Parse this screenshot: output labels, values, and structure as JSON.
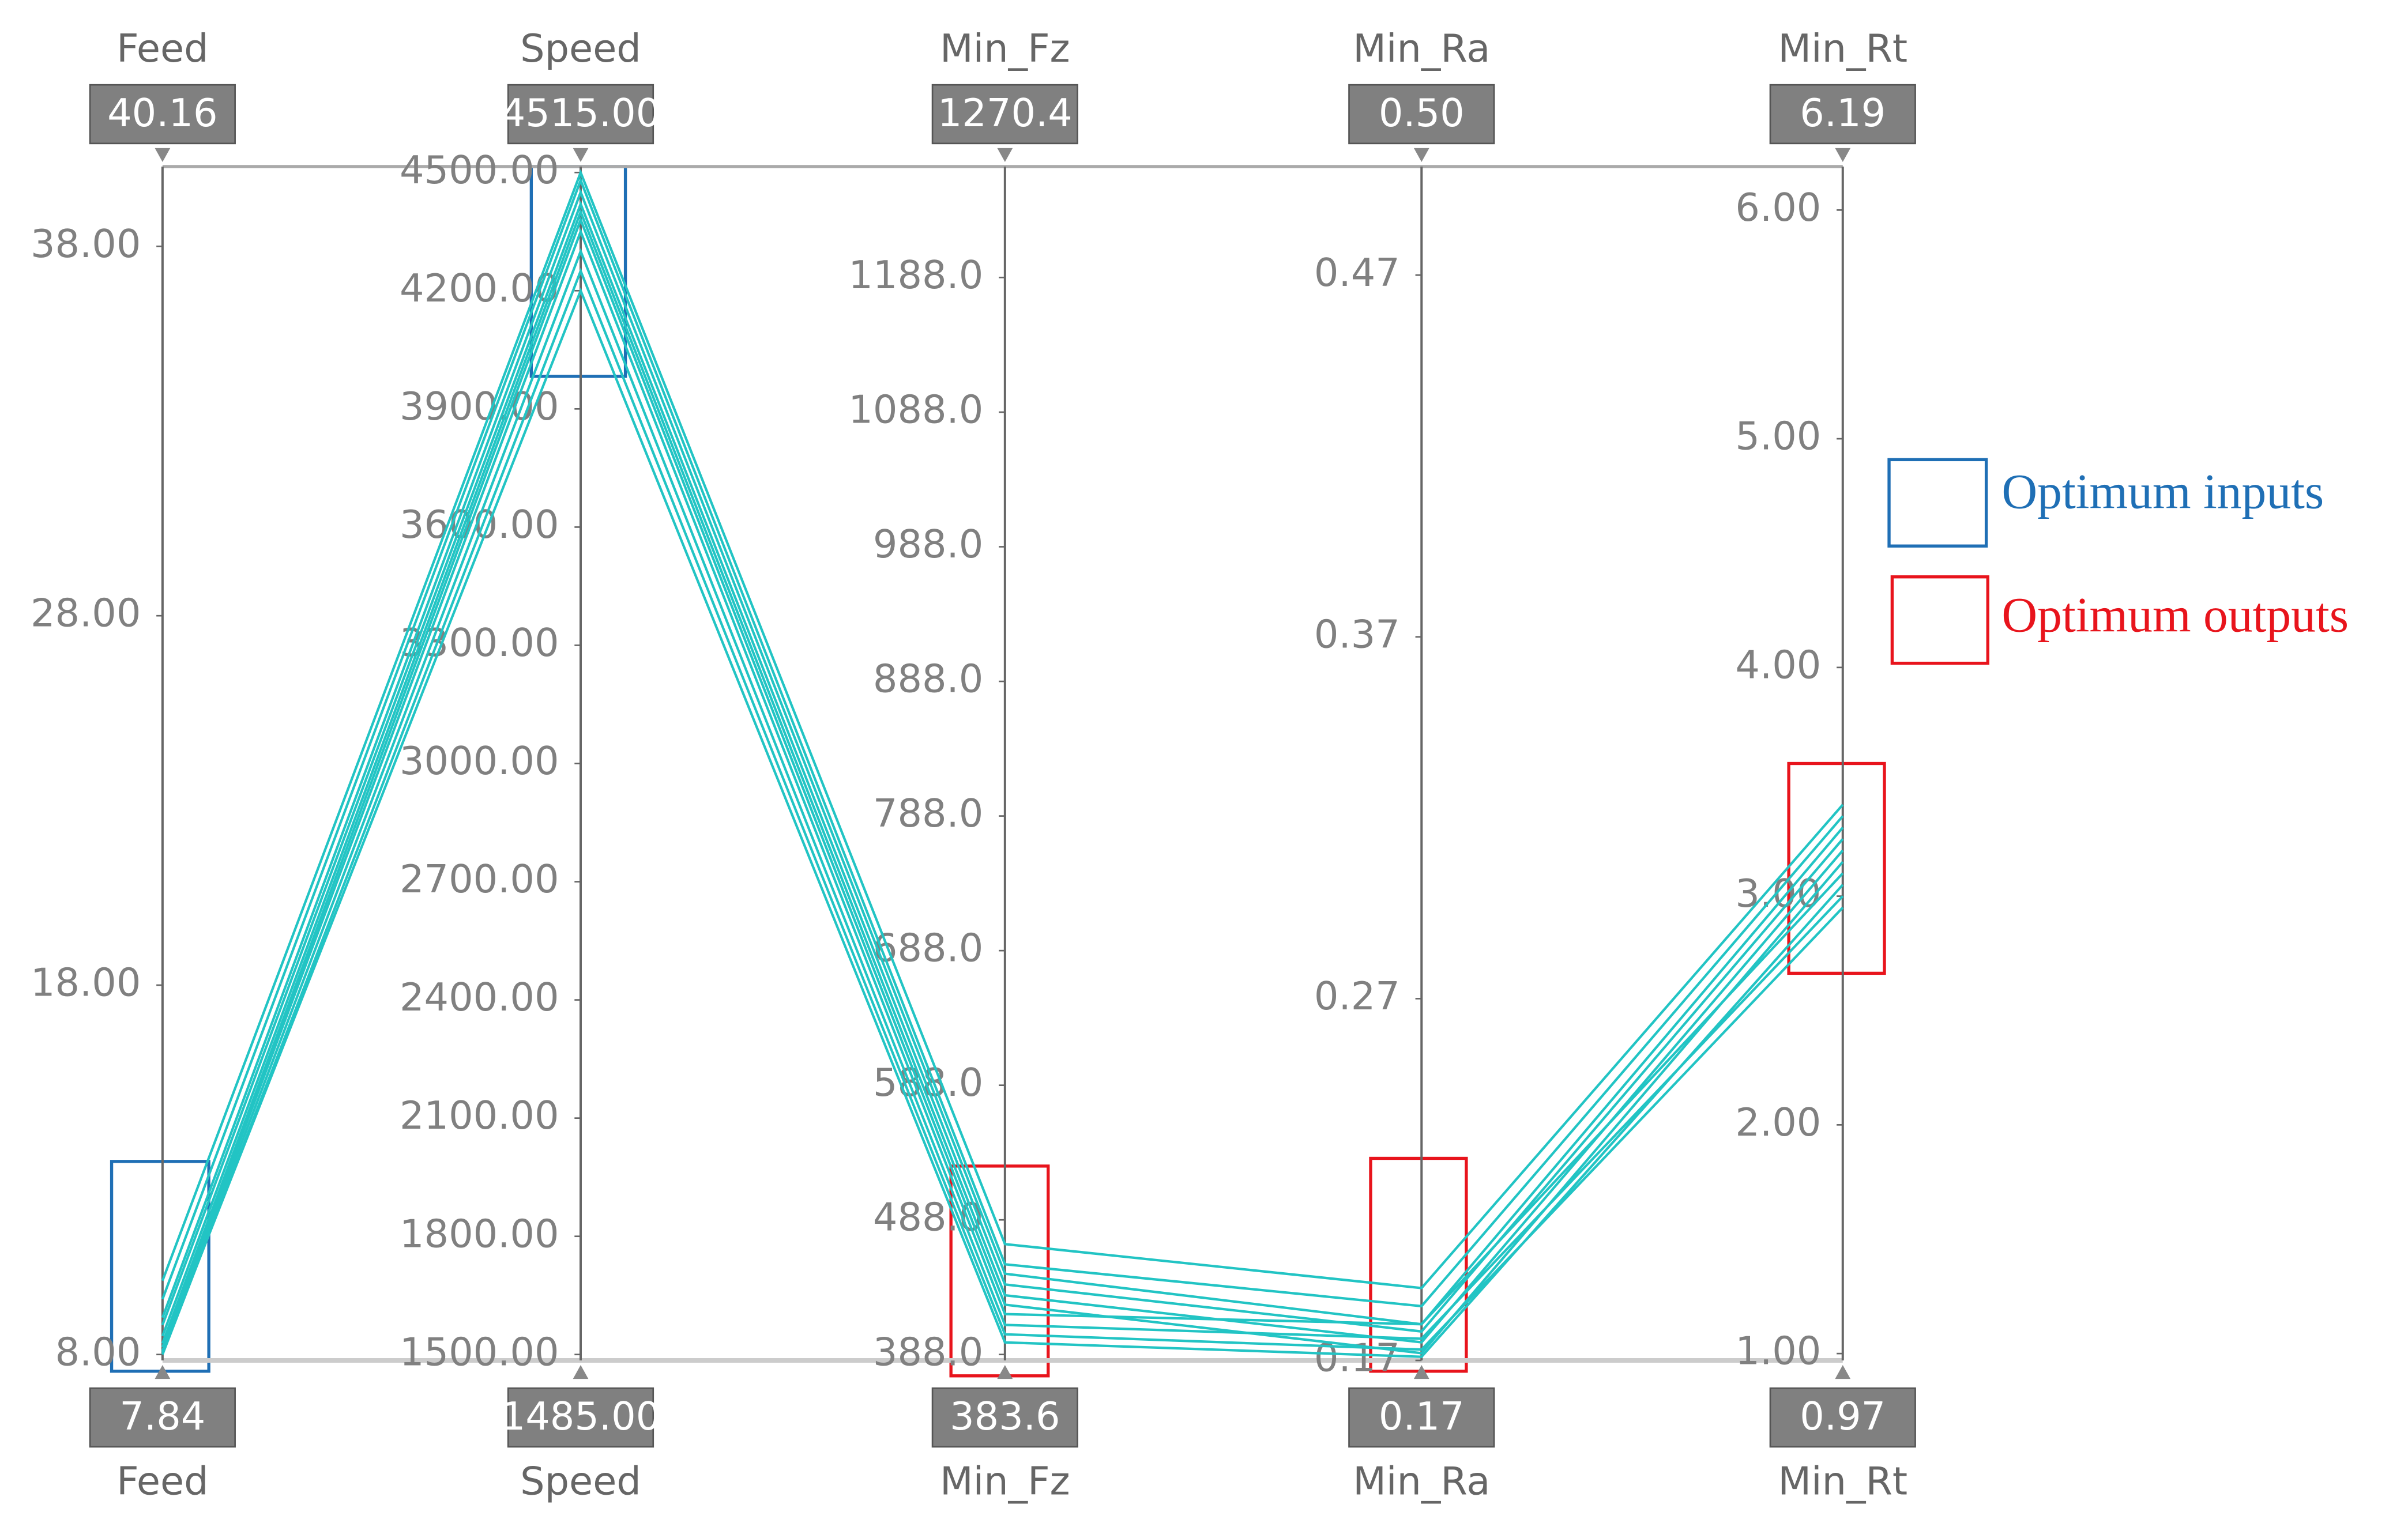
{
  "chart_data": {
    "type": "parallel",
    "color": "#22c4c4",
    "axes": [
      {
        "name": "Feed",
        "min": 7.84,
        "max": 40.16,
        "ticks": [
          {
            "value": 8,
            "label": "8.00"
          },
          {
            "value": 18,
            "label": "18.00"
          },
          {
            "value": 28,
            "label": "28.00"
          },
          {
            "value": 38,
            "label": "38.00"
          }
        ]
      },
      {
        "name": "Speed",
        "min": {
          "value": 1485,
          "label": "1485.00"
        },
        "max": {
          "value": 4515,
          "label": "4515.00"
        },
        "ticks": [
          {
            "value": 1500,
            "label": "1500.00"
          },
          {
            "value": 1800,
            "label": "1800.00"
          },
          {
            "value": 2100,
            "label": "2100.00"
          },
          {
            "value": 2400,
            "label": "2400.00"
          },
          {
            "value": 2700,
            "label": "2700.00"
          },
          {
            "value": 3000,
            "label": "3000.00"
          },
          {
            "value": 3300,
            "label": "3300.00"
          },
          {
            "value": 3600,
            "label": "3600.00"
          },
          {
            "value": 3900,
            "label": "3900.00"
          },
          {
            "value": 4200,
            "label": "4200.00"
          },
          {
            "value": 4500,
            "label": "4500.00"
          }
        ]
      },
      {
        "name": "Min_Fz",
        "min": 383.6,
        "max": 1270.4,
        "ticks": [
          {
            "value": 388,
            "label": "388.0"
          },
          {
            "value": 488,
            "label": "488.0"
          },
          {
            "value": 588,
            "label": "588.0"
          },
          {
            "value": 688,
            "label": "688.0"
          },
          {
            "value": 788,
            "label": "788.0"
          },
          {
            "value": 888,
            "label": "888.0"
          },
          {
            "value": 988,
            "label": "988.0"
          },
          {
            "value": 1088,
            "label": "1088.0"
          },
          {
            "value": 1188,
            "label": "1188.0"
          }
        ]
      },
      {
        "name": "Min_Ra",
        "min": 0.17,
        "max": {
          "value": 0.5,
          "label": "0.50"
        },
        "ticks": [
          0.17,
          0.27,
          0.37,
          0.47
        ]
      },
      {
        "name": "Min_Rt",
        "min": 0.97,
        "max": 6.19,
        "ticks": [
          {
            "value": 1,
            "label": "1.00"
          },
          {
            "value": 2,
            "label": "2.00"
          },
          {
            "value": 3,
            "label": "3.00"
          },
          {
            "value": 4,
            "label": "4.00"
          },
          {
            "value": 5,
            "label": "5.00"
          },
          {
            "value": 6,
            "label": "6.00"
          }
        ]
      }
    ],
    "series": [
      {
        "values": [
          10.0,
          4500,
          470,
          0.19,
          3.4
        ]
      },
      {
        "values": [
          9.5,
          4480,
          455,
          0.185,
          3.35
        ]
      },
      {
        "values": [
          9.0,
          4450,
          448,
          0.18,
          3.3
        ]
      },
      {
        "values": [
          8.8,
          4420,
          440,
          0.178,
          3.25
        ]
      },
      {
        "values": [
          8.5,
          4400,
          432,
          0.175,
          3.2
        ]
      },
      {
        "values": [
          8.3,
          4380,
          425,
          0.172,
          3.15
        ]
      },
      {
        "values": [
          8.2,
          4350,
          418,
          0.18,
          3.1
        ]
      },
      {
        "values": [
          8.1,
          4300,
          410,
          0.176,
          3.0
        ]
      },
      {
        "values": [
          8.0,
          4250,
          403,
          0.173,
          2.95
        ]
      },
      {
        "values": [
          8.05,
          4200,
          397,
          0.171,
          3.05
        ]
      }
    ],
    "legend": [
      {
        "name": "Optimum inputs",
        "color": "#1f6fb5"
      },
      {
        "name": "Optimum outputs",
        "color": "#e8141c"
      }
    ]
  }
}
